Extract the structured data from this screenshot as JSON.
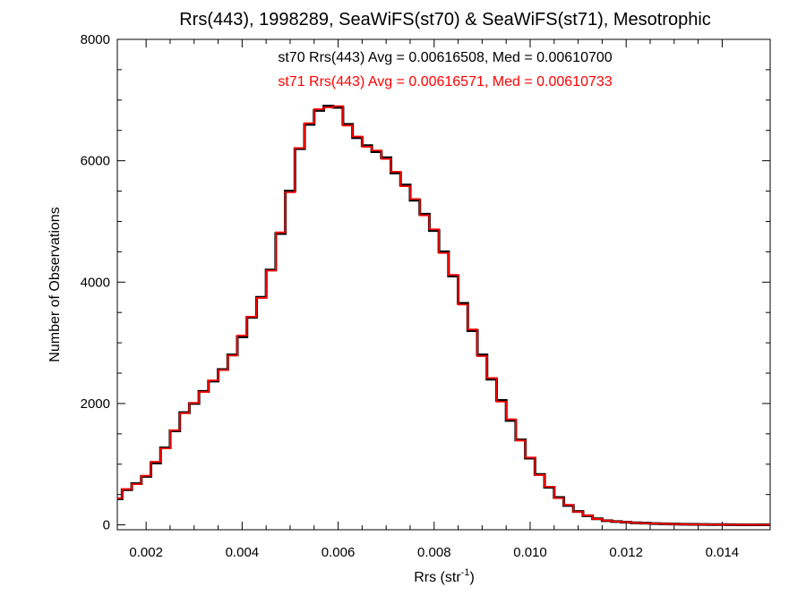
{
  "chart_data": {
    "type": "line",
    "title": "Rrs(443), 1998289, SeaWiFS(st70) & SeaWiFS(st71), Mesotrophic",
    "xlabel_main": "Rrs (str",
    "xlabel_sup": "-1",
    "xlabel_close": ")",
    "ylabel": "Number of Observations",
    "xlim": [
      0.0014,
      0.015
    ],
    "ylim": [
      -80,
      8000
    ],
    "x_ticks": [
      0.002,
      0.004,
      0.006,
      0.008,
      0.01,
      0.012,
      0.014
    ],
    "x_tick_labels": [
      "0.002",
      "0.004",
      "0.006",
      "0.008",
      "0.010",
      "0.012",
      "0.014"
    ],
    "y_ticks": [
      0,
      2000,
      4000,
      6000,
      8000
    ],
    "y_tick_labels": [
      "0",
      "2000",
      "4000",
      "6000",
      "8000"
    ],
    "grid": false,
    "step": "histogram",
    "annotations": [
      {
        "text": "st70 Rrs(443) Avg = 0.00616508, Med = 0.00610700",
        "color": "#000000"
      },
      {
        "text": "st71 Rrs(443) Avg = 0.00616571, Med = 0.00610733",
        "color": "#ff0000"
      }
    ],
    "series": [
      {
        "color": "#000000",
        "x": [
          0.0014,
          0.0016,
          0.0018,
          0.002,
          0.0022,
          0.0024,
          0.0026,
          0.0028,
          0.003,
          0.0032,
          0.0034,
          0.0036,
          0.0038,
          0.004,
          0.0042,
          0.0044,
          0.0046,
          0.0048,
          0.005,
          0.0052,
          0.0054,
          0.0056,
          0.0058,
          0.006,
          0.0062,
          0.0064,
          0.0066,
          0.0068,
          0.007,
          0.0072,
          0.0074,
          0.0076,
          0.0078,
          0.008,
          0.0082,
          0.0084,
          0.0086,
          0.0088,
          0.009,
          0.0092,
          0.0094,
          0.0096,
          0.0098,
          0.01,
          0.0102,
          0.0104,
          0.0106,
          0.0108,
          0.011,
          0.0112,
          0.0114,
          0.0116,
          0.0118,
          0.012,
          0.0122,
          0.0124,
          0.0126,
          0.0128,
          0.013,
          0.0132,
          0.0134,
          0.0136,
          0.0138,
          0.014,
          0.0142,
          0.0144,
          0.0146,
          0.0148,
          0.015
        ],
        "y": [
          430,
          580,
          680,
          800,
          1020,
          1270,
          1550,
          1850,
          2000,
          2200,
          2370,
          2560,
          2800,
          3100,
          3420,
          3750,
          4200,
          4800,
          5500,
          6200,
          6600,
          6830,
          6900,
          6880,
          6600,
          6380,
          6250,
          6150,
          6050,
          5800,
          5600,
          5350,
          5120,
          4850,
          4500,
          4100,
          3650,
          3200,
          2800,
          2400,
          2050,
          1720,
          1400,
          1100,
          830,
          620,
          450,
          320,
          220,
          150,
          100,
          70,
          55,
          45,
          35,
          28,
          22,
          18,
          14,
          10,
          8,
          6,
          5,
          4,
          3,
          2,
          2,
          1,
          1
        ]
      },
      {
        "color": "#ff0000",
        "x": [
          0.0014,
          0.0016,
          0.0018,
          0.002,
          0.0022,
          0.0024,
          0.0026,
          0.0028,
          0.003,
          0.0032,
          0.0034,
          0.0036,
          0.0038,
          0.004,
          0.0042,
          0.0044,
          0.0046,
          0.0048,
          0.005,
          0.0052,
          0.0054,
          0.0056,
          0.0058,
          0.006,
          0.0062,
          0.0064,
          0.0066,
          0.0068,
          0.007,
          0.0072,
          0.0074,
          0.0076,
          0.0078,
          0.008,
          0.0082,
          0.0084,
          0.0086,
          0.0088,
          0.009,
          0.0092,
          0.0094,
          0.0096,
          0.0098,
          0.01,
          0.0102,
          0.0104,
          0.0106,
          0.0108,
          0.011,
          0.0112,
          0.0114,
          0.0116,
          0.0118,
          0.012,
          0.0122,
          0.0124,
          0.0126,
          0.0128,
          0.013,
          0.0132,
          0.0134,
          0.0136,
          0.0138,
          0.014,
          0.0142,
          0.0144,
          0.0146,
          0.0148,
          0.015
        ],
        "y": [
          440,
          590,
          670,
          810,
          1040,
          1260,
          1560,
          1840,
          2010,
          2190,
          2380,
          2550,
          2790,
          3120,
          3430,
          3740,
          4190,
          4820,
          5480,
          6210,
          6620,
          6850,
          6880,
          6900,
          6580,
          6400,
          6230,
          6170,
          6030,
          5820,
          5580,
          5370,
          5100,
          4870,
          4480,
          4120,
          3630,
          3220,
          2780,
          2420,
          2030,
          1740,
          1390,
          1110,
          820,
          630,
          440,
          330,
          215,
          155,
          98,
          72,
          54,
          46,
          34,
          29,
          21,
          19,
          13,
          11,
          7,
          6,
          5,
          4,
          3,
          2,
          2,
          1,
          1
        ]
      }
    ]
  }
}
